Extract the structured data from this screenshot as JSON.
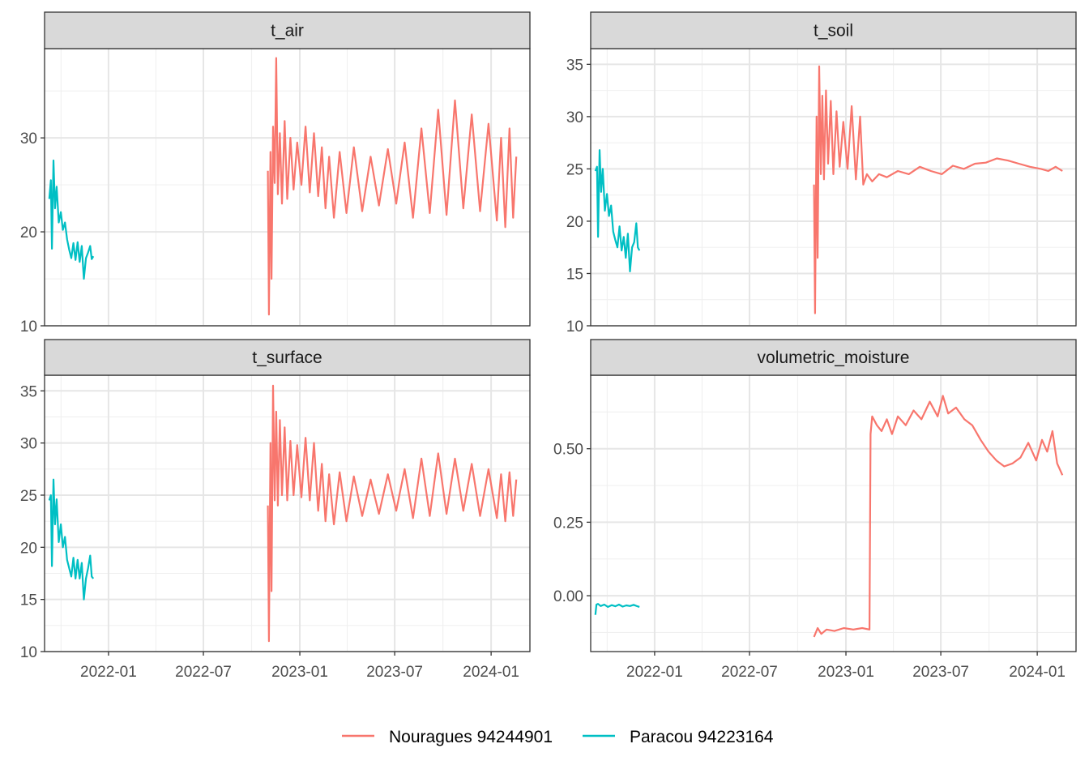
{
  "chart_data": {
    "type": "line",
    "layout": "facet grid, 2 columns x 2 rows, free y scales, shared x axis",
    "x_axis": {
      "type": "date",
      "range": [
        "2021-09-01",
        "2024-03-15"
      ],
      "tick_labels": [
        "2022-01",
        "2022-07",
        "2023-01",
        "2023-07",
        "2024-01"
      ],
      "tick_dates": [
        "2022-01-01",
        "2022-07-01",
        "2023-01-01",
        "2023-07-01",
        "2024-01-01"
      ]
    },
    "grid": true,
    "legend": {
      "position": "bottom",
      "entries": [
        {
          "name": "Nouragues 94244901",
          "color": "#F8766D"
        },
        {
          "name": "Paracou 94223164",
          "color": "#00BFC4"
        }
      ]
    },
    "panels": [
      {
        "title": "t_air",
        "ylim": [
          10,
          39.5
        ],
        "y_ticks": [
          10,
          20,
          30
        ],
        "y_tick_labels": [
          "10",
          "20",
          "30"
        ],
        "series": [
          {
            "name": "Paracou 94223164",
            "color": "#00BFC4",
            "x": [
              "2021-09-10",
              "2021-09-13",
              "2021-09-15",
              "2021-09-18",
              "2021-09-21",
              "2021-09-24",
              "2021-09-28",
              "2021-10-02",
              "2021-10-06",
              "2021-10-10",
              "2021-10-14",
              "2021-10-18",
              "2021-10-22",
              "2021-10-26",
              "2021-10-30",
              "2021-11-03",
              "2021-11-07",
              "2021-11-11",
              "2021-11-15",
              "2021-11-19",
              "2021-11-23",
              "2021-11-27",
              "2021-11-30",
              "2021-12-03"
            ],
            "y": [
              23.5,
              25.5,
              18.2,
              27.6,
              22.5,
              24.8,
              21.0,
              22.1,
              20.2,
              21.0,
              19.2,
              18.1,
              17.2,
              18.8,
              17.0,
              18.9,
              16.8,
              18.5,
              15.0,
              17.2,
              17.8,
              18.5,
              17.1,
              17.4
            ]
          },
          {
            "name": "Nouragues 94244901",
            "color": "#F8766D",
            "x": [
              "2022-11-01",
              "2022-11-03",
              "2022-11-06",
              "2022-11-08",
              "2022-11-11",
              "2022-11-14",
              "2022-11-17",
              "2022-11-20",
              "2022-11-24",
              "2022-11-28",
              "2022-12-03",
              "2022-12-08",
              "2022-12-14",
              "2022-12-20",
              "2022-12-27",
              "2023-01-04",
              "2023-01-12",
              "2023-01-20",
              "2023-01-28",
              "2023-02-05",
              "2023-02-12",
              "2023-02-19",
              "2023-02-26",
              "2023-03-07",
              "2023-03-18",
              "2023-03-31",
              "2023-04-14",
              "2023-04-30",
              "2023-05-16",
              "2023-06-01",
              "2023-06-18",
              "2023-07-04",
              "2023-07-20",
              "2023-08-05",
              "2023-08-21",
              "2023-09-06",
              "2023-09-22",
              "2023-10-08",
              "2023-10-24",
              "2023-11-09",
              "2023-11-25",
              "2023-12-11",
              "2023-12-27",
              "2024-01-12",
              "2024-01-20",
              "2024-01-28",
              "2024-02-05",
              "2024-02-12",
              "2024-02-18"
            ],
            "y": [
              26.5,
              11.2,
              28.5,
              15.0,
              31.2,
              25.2,
              38.5,
              24.0,
              30.5,
              23.0,
              31.8,
              23.5,
              30.0,
              24.5,
              29.5,
              25.0,
              31.2,
              24.2,
              30.5,
              23.8,
              29.0,
              22.5,
              28.0,
              21.5,
              28.5,
              22.0,
              29.0,
              22.2,
              28.0,
              22.8,
              28.8,
              23.0,
              29.5,
              21.5,
              31.0,
              22.0,
              33.0,
              21.8,
              34.0,
              22.5,
              32.5,
              22.2,
              31.5,
              21.2,
              30.0,
              20.5,
              31.0,
              21.5,
              28.0
            ]
          }
        ]
      },
      {
        "title": "t_soil",
        "ylim": [
          10,
          36.5
        ],
        "y_ticks": [
          10,
          15,
          20,
          25,
          30,
          35
        ],
        "y_tick_labels": [
          "10",
          "15",
          "20",
          "25",
          "30",
          "35"
        ],
        "series": [
          {
            "name": "Paracou 94223164",
            "color": "#00BFC4",
            "x": [
              "2021-09-10",
              "2021-09-13",
              "2021-09-15",
              "2021-09-18",
              "2021-09-21",
              "2021-09-24",
              "2021-09-28",
              "2021-10-02",
              "2021-10-06",
              "2021-10-10",
              "2021-10-14",
              "2021-10-18",
              "2021-10-22",
              "2021-10-26",
              "2021-10-30",
              "2021-11-03",
              "2021-11-07",
              "2021-11-11",
              "2021-11-15",
              "2021-11-19",
              "2021-11-23",
              "2021-11-27",
              "2021-11-30",
              "2021-12-03"
            ],
            "y": [
              24.8,
              25.2,
              18.5,
              26.8,
              22.8,
              25.0,
              21.0,
              22.6,
              20.5,
              21.5,
              19.0,
              18.2,
              17.5,
              19.5,
              17.2,
              18.5,
              16.5,
              18.8,
              15.2,
              17.5,
              18.0,
              19.8,
              17.5,
              17.2
            ]
          },
          {
            "name": "Nouragues 94244901",
            "color": "#F8766D",
            "x": [
              "2022-11-01",
              "2022-11-03",
              "2022-11-06",
              "2022-11-08",
              "2022-11-11",
              "2022-11-14",
              "2022-11-17",
              "2022-11-20",
              "2022-11-24",
              "2022-11-28",
              "2022-12-03",
              "2022-12-08",
              "2022-12-14",
              "2022-12-20",
              "2022-12-27",
              "2023-01-04",
              "2023-01-12",
              "2023-01-20",
              "2023-01-28",
              "2023-02-03",
              "2023-02-10",
              "2023-02-20",
              "2023-03-05",
              "2023-03-20",
              "2023-04-10",
              "2023-05-01",
              "2023-05-22",
              "2023-06-12",
              "2023-07-03",
              "2023-07-24",
              "2023-08-14",
              "2023-09-04",
              "2023-09-25",
              "2023-10-16",
              "2023-11-06",
              "2023-11-27",
              "2023-12-18",
              "2024-01-08",
              "2024-01-22",
              "2024-02-05",
              "2024-02-18"
            ],
            "y": [
              23.5,
              11.2,
              30.0,
              16.5,
              34.8,
              24.5,
              32.0,
              24.0,
              32.5,
              25.5,
              31.5,
              24.5,
              30.5,
              25.2,
              29.5,
              25.0,
              31.0,
              24.0,
              30.0,
              23.5,
              24.5,
              23.8,
              24.5,
              24.2,
              24.8,
              24.5,
              25.2,
              24.8,
              24.5,
              25.3,
              25.0,
              25.5,
              25.6,
              26.0,
              25.8,
              25.5,
              25.2,
              25.0,
              24.8,
              25.2,
              24.8
            ]
          }
        ]
      },
      {
        "title": "t_surface",
        "ylim": [
          10,
          36.5
        ],
        "y_ticks": [
          10,
          15,
          20,
          25,
          30,
          35
        ],
        "y_tick_labels": [
          "10",
          "15",
          "20",
          "25",
          "30",
          "35"
        ],
        "series": [
          {
            "name": "Paracou 94223164",
            "color": "#00BFC4",
            "x": [
              "2021-09-10",
              "2021-09-13",
              "2021-09-15",
              "2021-09-18",
              "2021-09-21",
              "2021-09-24",
              "2021-09-28",
              "2021-10-02",
              "2021-10-06",
              "2021-10-10",
              "2021-10-14",
              "2021-10-18",
              "2021-10-22",
              "2021-10-26",
              "2021-10-30",
              "2021-11-03",
              "2021-11-07",
              "2021-11-11",
              "2021-11-15",
              "2021-11-19",
              "2021-11-23",
              "2021-11-27",
              "2021-11-30",
              "2021-12-03"
            ],
            "y": [
              24.5,
              25.0,
              18.2,
              26.5,
              22.2,
              24.6,
              20.5,
              22.2,
              20.0,
              21.0,
              18.8,
              18.0,
              17.2,
              19.0,
              17.0,
              18.8,
              17.0,
              18.5,
              15.0,
              17.0,
              18.0,
              19.2,
              17.2,
              17.0
            ]
          },
          {
            "name": "Nouragues 94244901",
            "color": "#F8766D",
            "x": [
              "2022-11-01",
              "2022-11-03",
              "2022-11-06",
              "2022-11-08",
              "2022-11-11",
              "2022-11-14",
              "2022-11-17",
              "2022-11-20",
              "2022-11-24",
              "2022-11-28",
              "2022-12-03",
              "2022-12-08",
              "2022-12-14",
              "2022-12-20",
              "2022-12-27",
              "2023-01-04",
              "2023-01-12",
              "2023-01-20",
              "2023-01-28",
              "2023-02-05",
              "2023-02-12",
              "2023-02-19",
              "2023-02-26",
              "2023-03-07",
              "2023-03-18",
              "2023-03-31",
              "2023-04-14",
              "2023-04-30",
              "2023-05-16",
              "2023-06-01",
              "2023-06-18",
              "2023-07-04",
              "2023-07-20",
              "2023-08-05",
              "2023-08-21",
              "2023-09-06",
              "2023-09-22",
              "2023-10-08",
              "2023-10-24",
              "2023-11-09",
              "2023-11-25",
              "2023-12-11",
              "2023-12-27",
              "2024-01-12",
              "2024-01-20",
              "2024-01-28",
              "2024-02-05",
              "2024-02-12",
              "2024-02-18"
            ],
            "y": [
              24.0,
              11.0,
              30.0,
              15.8,
              35.5,
              24.5,
              33.0,
              24.0,
              32.2,
              25.0,
              31.5,
              24.5,
              30.2,
              25.0,
              29.8,
              24.8,
              30.5,
              24.5,
              30.0,
              23.5,
              28.0,
              22.5,
              27.0,
              22.2,
              27.2,
              22.5,
              26.8,
              23.0,
              26.5,
              23.2,
              27.0,
              23.5,
              27.5,
              22.8,
              28.5,
              23.0,
              29.0,
              23.2,
              28.5,
              23.5,
              28.0,
              23.0,
              27.5,
              22.8,
              27.0,
              22.5,
              27.2,
              23.0,
              26.5
            ]
          }
        ]
      },
      {
        "title": "volumetric_moisture",
        "ylim": [
          -0.19,
          0.75
        ],
        "y_ticks": [
          0.0,
          0.25,
          0.5
        ],
        "y_tick_labels": [
          "0.00",
          "0.25",
          "0.50"
        ],
        "series": [
          {
            "name": "Paracou 94223164",
            "color": "#00BFC4",
            "x": [
              "2021-09-10",
              "2021-09-12",
              "2021-09-15",
              "2021-09-20",
              "2021-09-27",
              "2021-10-04",
              "2021-10-11",
              "2021-10-18",
              "2021-10-25",
              "2021-11-01",
              "2021-11-08",
              "2021-11-15",
              "2021-11-22",
              "2021-11-29",
              "2021-12-03"
            ],
            "y": [
              -0.065,
              -0.03,
              -0.028,
              -0.035,
              -0.03,
              -0.038,
              -0.032,
              -0.036,
              -0.03,
              -0.037,
              -0.033,
              -0.035,
              -0.031,
              -0.036,
              -0.038
            ]
          },
          {
            "name": "Nouragues 94244901",
            "color": "#F8766D",
            "x": [
              "2022-11-01",
              "2022-11-08",
              "2022-11-15",
              "2022-11-25",
              "2022-12-10",
              "2022-12-28",
              "2023-01-15",
              "2023-02-01",
              "2023-02-15",
              "2023-02-17",
              "2023-02-20",
              "2023-03-01",
              "2023-03-10",
              "2023-03-20",
              "2023-03-30",
              "2023-04-10",
              "2023-04-25",
              "2023-05-10",
              "2023-05-25",
              "2023-06-10",
              "2023-06-25",
              "2023-07-05",
              "2023-07-15",
              "2023-07-30",
              "2023-08-15",
              "2023-08-30",
              "2023-09-15",
              "2023-09-30",
              "2023-10-15",
              "2023-10-30",
              "2023-11-15",
              "2023-11-30",
              "2023-12-15",
              "2023-12-30",
              "2024-01-10",
              "2024-01-20",
              "2024-01-30",
              "2024-02-08",
              "2024-02-18"
            ],
            "y": [
              -0.14,
              -0.11,
              -0.13,
              -0.115,
              -0.12,
              -0.11,
              -0.115,
              -0.11,
              -0.115,
              0.55,
              0.61,
              0.58,
              0.56,
              0.6,
              0.55,
              0.61,
              0.58,
              0.63,
              0.6,
              0.66,
              0.61,
              0.68,
              0.62,
              0.64,
              0.6,
              0.58,
              0.53,
              0.49,
              0.46,
              0.44,
              0.45,
              0.47,
              0.52,
              0.46,
              0.53,
              0.49,
              0.56,
              0.45,
              0.41
            ]
          }
        ]
      }
    ]
  }
}
